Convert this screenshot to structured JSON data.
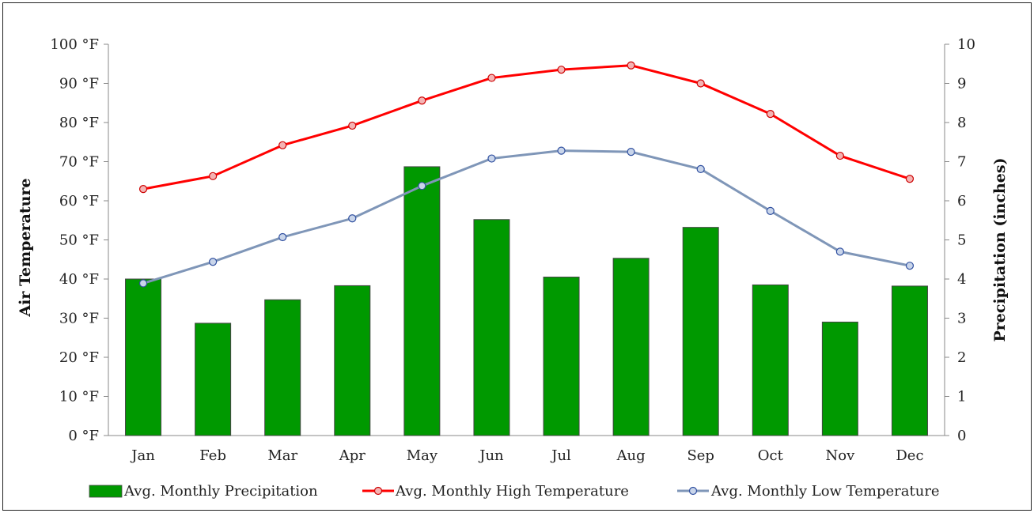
{
  "chart_data": {
    "type": "bar",
    "categories": [
      "Jan",
      "Feb",
      "Mar",
      "Apr",
      "May",
      "Jun",
      "Jul",
      "Aug",
      "Sep",
      "Oct",
      "Nov",
      "Dec"
    ],
    "left_axis": {
      "label": "Air Temperature",
      "ylim": [
        0,
        100
      ],
      "ticks": [
        "0 °F",
        "10 °F",
        "20 °F",
        "30 °F",
        "40 °F",
        "50 °F",
        "60 °F",
        "70 °F",
        "80 °F",
        "90 °F",
        "100 °F"
      ]
    },
    "right_axis": {
      "label": "Precipitation (inches)",
      "ylim": [
        0,
        10
      ],
      "ticks": [
        "0",
        "1",
        "2",
        "3",
        "4",
        "5",
        "6",
        "7",
        "8",
        "9",
        "10"
      ]
    },
    "series": [
      {
        "name": "Avg. Monthly Precipitation",
        "kind": "bar",
        "axis": "right",
        "color": "#009900",
        "values": [
          4.0,
          2.87,
          3.47,
          3.83,
          6.87,
          5.52,
          4.05,
          4.53,
          5.32,
          3.85,
          2.9,
          3.82
        ]
      },
      {
        "name": "Avg. Monthly High Temperature",
        "kind": "line",
        "axis": "left",
        "color": "#ff0000",
        "values": [
          63.0,
          66.3,
          74.2,
          79.2,
          85.6,
          91.4,
          93.5,
          94.6,
          90.0,
          82.2,
          71.5,
          65.6
        ]
      },
      {
        "name": "Avg. Monthly Low Temperature",
        "kind": "line",
        "axis": "left",
        "color": "#7f96b8",
        "values": [
          38.9,
          44.4,
          50.7,
          55.5,
          63.8,
          70.8,
          72.8,
          72.5,
          68.1,
          57.4,
          47.0,
          43.4
        ]
      }
    ],
    "grid": false,
    "legend_position": "bottom"
  }
}
